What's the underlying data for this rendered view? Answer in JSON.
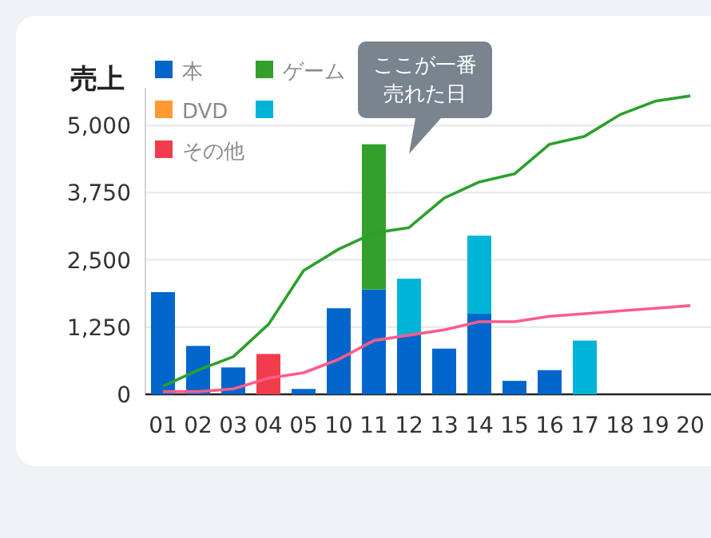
{
  "chart_data": {
    "type": "bar",
    "title": "売上",
    "stacked": true,
    "grid": "y",
    "legend": "top left",
    "marker": "none",
    "categories": [
      "01",
      "02",
      "03",
      "04",
      "05",
      "10",
      "11",
      "12",
      "13",
      "14",
      "15",
      "16",
      "17",
      "18",
      "19",
      "20"
    ],
    "ylim": [
      0,
      5700
    ],
    "yticks": [
      0,
      {
        "value": 1250,
        "label": "1,250"
      },
      {
        "value": 2500,
        "label": "2,500"
      },
      {
        "value": 3750,
        "label": "3,750"
      },
      {
        "value": 5000,
        "label": "5,000"
      }
    ],
    "series": [
      {
        "name": "本",
        "color": "#0066cc",
        "values": [
          1900,
          900,
          500,
          null,
          100,
          1600,
          1950,
          1100,
          850,
          1500,
          250,
          450,
          null,
          null,
          null,
          null
        ]
      },
      {
        "name": "ゲーム",
        "color": "#33a02c",
        "values": [
          null,
          null,
          null,
          null,
          null,
          null,
          2700,
          null,
          null,
          null,
          null,
          null,
          null,
          null,
          null,
          null
        ]
      },
      {
        "name": "DVD",
        "color": "#ff9933",
        "values": [
          null,
          null,
          null,
          null,
          null,
          null,
          null,
          null,
          null,
          null,
          null,
          null,
          null,
          null,
          null,
          null
        ]
      },
      {
        "color": "#00b4d8",
        "values": [
          null,
          null,
          null,
          null,
          null,
          null,
          null,
          1050,
          null,
          1450,
          null,
          null,
          1000,
          null,
          null,
          null
        ]
      },
      {
        "name": "その他",
        "color": "#f03c4b",
        "values": [
          null,
          null,
          null,
          750,
          null,
          null,
          null,
          null,
          null,
          null,
          null,
          null,
          null,
          null,
          null,
          null
        ]
      },
      {
        "type": "line",
        "color": "#2ca02c",
        "values": [
          150,
          450,
          700,
          1300,
          2300,
          2700,
          3000,
          3100,
          3650,
          3950,
          4100,
          4650,
          4800,
          5200,
          5450,
          5550
        ]
      },
      {
        "type": "line",
        "color": "#ff5c8a",
        "values": [
          50,
          50,
          100,
          300,
          400,
          650,
          1000,
          1100,
          1200,
          1350,
          1350,
          1450,
          1500,
          1550,
          1600,
          1650
        ]
      }
    ],
    "annotations": [
      {
        "text": "ここが一番売れた日",
        "x": "11",
        "y": 4650
      }
    ]
  }
}
